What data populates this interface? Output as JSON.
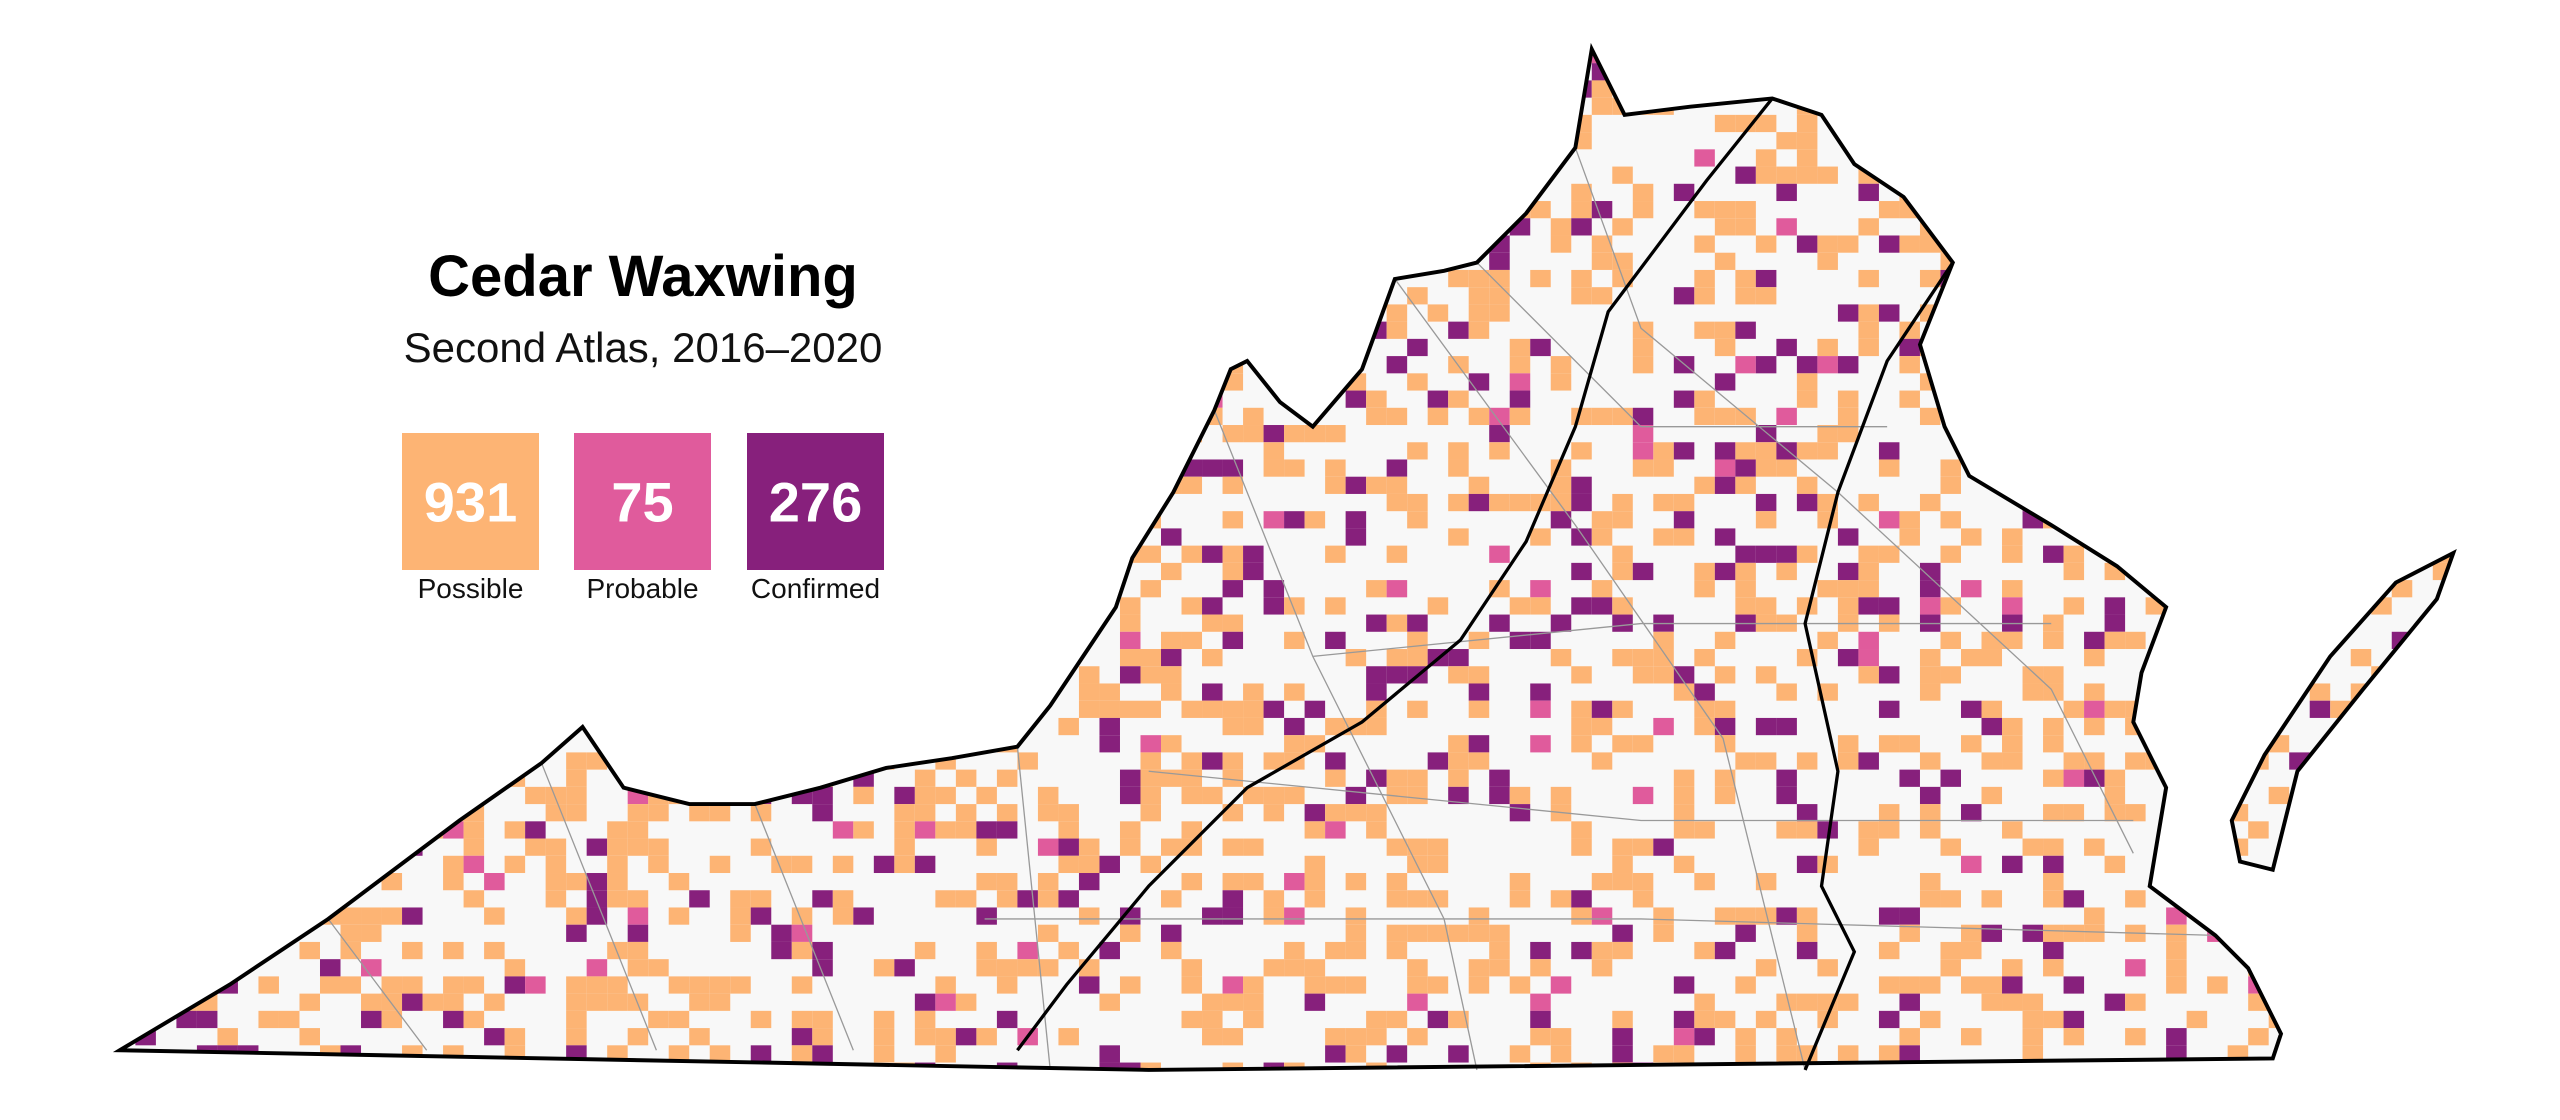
{
  "title": "Cedar Waxwing",
  "subtitle": "Second Atlas, 2016–2020",
  "legend": [
    {
      "count": 931,
      "label": "Possible",
      "color": "#fdb474"
    },
    {
      "count": 75,
      "label": "Probable",
      "color": "#e05b9c"
    },
    {
      "count": 276,
      "label": "Confirmed",
      "color": "#87207c"
    }
  ]
}
